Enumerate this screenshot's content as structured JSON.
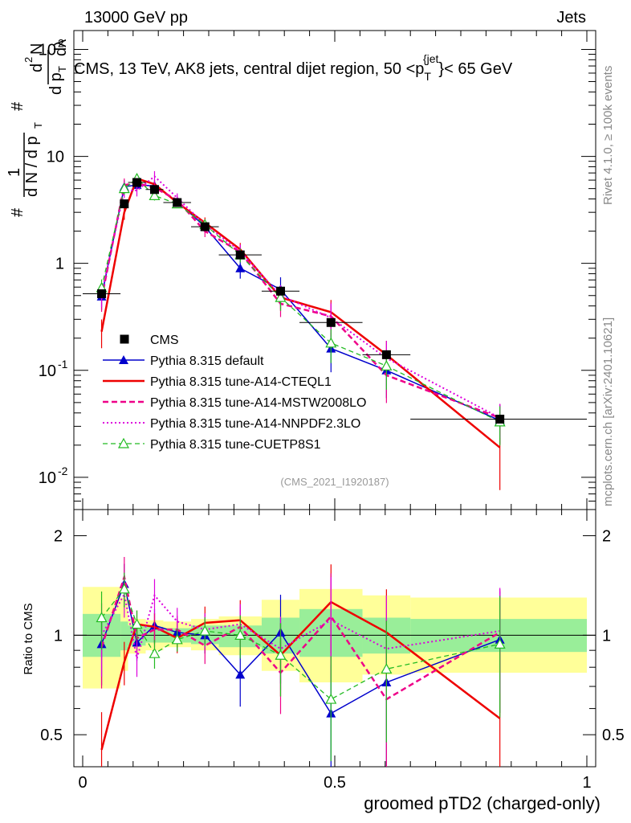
{
  "header": {
    "left": "13000 GeV pp",
    "right": "Jets",
    "title": "CMS, 13 TeV, AK8 jets, central dijet region, 50 <p",
    "title_sub": "T",
    "title_sup": "{jet",
    "title_end": "}< 65 GeV",
    "right_vertical_top": "Rivet 4.1.0, ≥ 100k events",
    "right_vertical_bottom": "mcplots.cern.ch [arXiv:2401.10621]",
    "analysis_id": "(CMS_2021_I1920187)"
  },
  "axes": {
    "ylabel_main_parts": [
      "#",
      "1",
      "d N / d p",
      "T",
      "#",
      "d p",
      "T",
      "d",
      "2",
      "N",
      "dλ"
    ],
    "ylabel_ratio": "Ratio to CMS",
    "xlabel": "groomed pTD2 (charged-only)",
    "x_ticks": [
      "0",
      "0.5",
      "1"
    ],
    "y_main_ticks": [
      "10",
      "-2",
      "10",
      "-1",
      "1",
      "10",
      "10",
      "2"
    ],
    "y_ratio_ticks": [
      "0.5",
      "1",
      "2"
    ]
  },
  "legend": [
    {
      "label": "CMS",
      "color": "#000000",
      "style": "data"
    },
    {
      "label": "Pythia 8.315 default",
      "color": "#0000cc",
      "style": "solid-triangle"
    },
    {
      "label": "Pythia 8.315 tune-A14-CTEQL1",
      "color": "#ee0000",
      "style": "solid"
    },
    {
      "label": "Pythia 8.315 tune-A14-MSTW2008LO",
      "color": "#ee0088",
      "style": "dashed"
    },
    {
      "label": "Pythia 8.315 tune-A14-NNPDF2.3LO",
      "color": "#dd00dd",
      "style": "dotted"
    },
    {
      "label": "Pythia 8.315 tune-CUETP8S1",
      "color": "#22bb22",
      "style": "dashed-open-triangle"
    }
  ],
  "chart_data": [
    {
      "type": "line",
      "panel": "main",
      "yscale": "log",
      "xlim": [
        0,
        1
      ],
      "ylim": [
        0.005,
        150
      ],
      "x": [
        0.0375,
        0.0825,
        0.1075,
        0.1425,
        0.1875,
        0.2425,
        0.3125,
        0.3925,
        0.4925,
        0.6025,
        0.8275
      ],
      "x_edges": [
        0.0,
        0.075,
        0.09,
        0.125,
        0.16,
        0.215,
        0.27,
        0.355,
        0.43,
        0.555,
        0.65,
        1.0
      ],
      "series": [
        {
          "name": "CMS",
          "values": [
            0.52,
            3.6,
            5.7,
            4.9,
            3.7,
            2.2,
            1.2,
            0.55,
            0.28,
            0.14,
            0.035
          ],
          "rel_err": [
            0.2,
            0.12,
            0.08,
            0.08,
            0.08,
            0.1,
            0.12,
            0.18,
            0.25,
            0.3,
            0.4
          ]
        },
        {
          "name": "Pythia 8.315 default",
          "values": [
            0.49,
            5.2,
            5.4,
            5.3,
            3.8,
            2.2,
            0.9,
            0.57,
            0.16,
            0.1,
            0.034
          ],
          "rel_err": [
            0.25,
            0.15,
            0.12,
            0.12,
            0.1,
            0.12,
            0.2,
            0.3,
            0.4,
            0.45,
            0.4
          ]
        },
        {
          "name": "Pythia 8.315 tune-A14-CTEQL1",
          "values": [
            0.23,
            3.0,
            6.2,
            5.5,
            3.7,
            2.4,
            1.35,
            0.48,
            0.35,
            0.14,
            0.019
          ],
          "rel_err": [
            0.3,
            0.15,
            0.1,
            0.1,
            0.1,
            0.12,
            0.15,
            0.25,
            0.3,
            0.35,
            0.6
          ]
        },
        {
          "name": "Pythia 8.315 tune-A14-MSTW2008LO",
          "values": [
            0.47,
            5.4,
            5.6,
            5.1,
            3.9,
            2.0,
            1.28,
            0.42,
            0.32,
            0.09,
            0.036
          ],
          "rel_err": [
            0.25,
            0.15,
            0.12,
            0.12,
            0.1,
            0.12,
            0.15,
            0.25,
            0.35,
            0.45,
            0.35
          ]
        },
        {
          "name": "Pythia 8.315 tune-A14-NNPDF2.3LO",
          "values": [
            0.52,
            4.8,
            4.8,
            6.5,
            4.1,
            2.3,
            1.3,
            0.5,
            0.31,
            0.13,
            0.036
          ],
          "rel_err": [
            0.25,
            0.15,
            0.12,
            0.12,
            0.1,
            0.12,
            0.15,
            0.25,
            0.35,
            0.45,
            0.35
          ]
        },
        {
          "name": "Pythia 8.315 tune-CUETP8S1",
          "values": [
            0.59,
            5.0,
            6.2,
            4.3,
            3.6,
            2.3,
            1.2,
            0.48,
            0.18,
            0.11,
            0.033
          ],
          "rel_err": [
            0.2,
            0.12,
            0.1,
            0.1,
            0.08,
            0.1,
            0.15,
            0.25,
            0.35,
            0.4,
            0.4
          ]
        }
      ]
    },
    {
      "type": "line",
      "panel": "ratio",
      "yscale": "log",
      "xlim": [
        0,
        1
      ],
      "ylim": [
        0.4,
        2.4
      ],
      "ylabel": "Ratio to CMS",
      "xlabel": "groomed pTD2 (charged-only)",
      "x": [
        0.0375,
        0.0825,
        0.1075,
        0.1425,
        0.1875,
        0.2425,
        0.3125,
        0.3925,
        0.4925,
        0.6025,
        0.8275
      ],
      "x_edges": [
        0.0,
        0.075,
        0.09,
        0.125,
        0.16,
        0.215,
        0.27,
        0.355,
        0.43,
        0.555,
        0.65,
        1.0
      ],
      "band_stat": [
        [
          0.86,
          1.16
        ],
        [
          0.9,
          1.1
        ],
        [
          0.93,
          1.07
        ],
        [
          0.95,
          1.06
        ],
        [
          0.95,
          1.05
        ],
        [
          0.94,
          1.07
        ],
        [
          0.92,
          1.07
        ],
        [
          0.88,
          1.13
        ],
        [
          0.86,
          1.2
        ],
        [
          0.88,
          1.13
        ],
        [
          0.89,
          1.12
        ]
      ],
      "band_total": [
        [
          0.69,
          1.4
        ],
        [
          0.78,
          1.3
        ],
        [
          0.88,
          1.12
        ],
        [
          0.9,
          1.11
        ],
        [
          0.92,
          1.1
        ],
        [
          0.9,
          1.12
        ],
        [
          0.87,
          1.14
        ],
        [
          0.78,
          1.28
        ],
        [
          0.72,
          1.38
        ],
        [
          0.76,
          1.32
        ],
        [
          0.77,
          1.3
        ]
      ],
      "series": [
        {
          "name": "Pythia 8.315 default",
          "values": [
            0.94,
            1.43,
            0.95,
            1.07,
            1.02,
            1.0,
            0.76,
            1.02,
            0.58,
            0.72,
            0.97
          ]
        },
        {
          "name": "Pythia 8.315 tune-A14-CTEQL1",
          "values": [
            0.45,
            0.83,
            1.08,
            1.06,
            0.98,
            1.09,
            1.11,
            0.87,
            1.26,
            1.02,
            0.56
          ]
        },
        {
          "name": "Pythia 8.315 tune-A14-MSTW2008LO",
          "values": [
            0.92,
            1.5,
            0.98,
            1.04,
            1.04,
            0.93,
            1.06,
            0.77,
            1.14,
            0.64,
            1.02
          ]
        },
        {
          "name": "Pythia 8.315 tune-A14-NNPDF2.3LO",
          "values": [
            1.0,
            1.33,
            0.85,
            1.32,
            1.1,
            1.04,
            1.08,
            0.91,
            1.11,
            0.91,
            1.03
          ]
        },
        {
          "name": "Pythia 8.315 tune-CUETP8S1",
          "values": [
            1.13,
            1.38,
            1.08,
            0.88,
            0.97,
            1.03,
            1.0,
            0.87,
            0.64,
            0.79,
            0.94
          ]
        }
      ]
    }
  ]
}
